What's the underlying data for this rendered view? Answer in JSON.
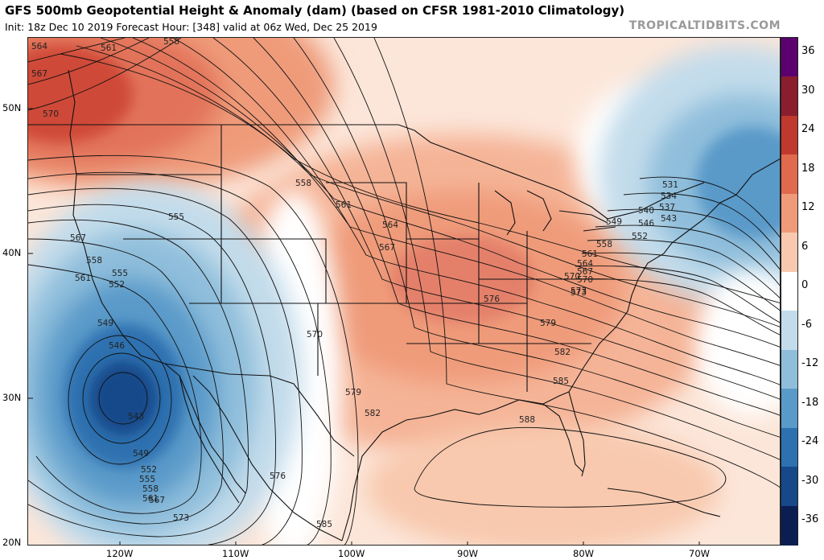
{
  "header": {
    "title": "GFS 500mb Geopotential Height & Anomaly (dam) (based on CFSR 1981-2010 Climatology)",
    "subtitle": "Init: 18z Dec 10 2019   Forecast Hour: [348]   valid at 06z Wed, Dec 25 2019",
    "brand": "TROPICALTIDBITS.COM"
  },
  "axes": {
    "lat_labels": [
      "50N",
      "40N",
      "30N",
      "20N"
    ],
    "lon_labels": [
      "120W",
      "110W",
      "100W",
      "90W",
      "80W",
      "70W"
    ]
  },
  "colorbar": {
    "labels": [
      "36",
      "30",
      "24",
      "18",
      "12",
      "6",
      "0",
      "-6",
      "-12",
      "-18",
      "-24",
      "-30",
      "-36"
    ],
    "colors": {
      "p36": "#5c0070",
      "p30": "#8a1e2e",
      "p24": "#c0392e",
      "p18": "#df6a4e",
      "p12": "#ef9b7a",
      "p6": "#f8c9ae",
      "zero": "#ffffff",
      "m6": "#c3dceb",
      "m12": "#8fbedb",
      "m18": "#5a9ac9",
      "m24": "#2d71b0",
      "m30": "#16488a",
      "m36": "#0b1e52"
    }
  },
  "contour_labels": [
    "564",
    "567",
    "570",
    "561",
    "558",
    "555",
    "552",
    "549",
    "546",
    "543",
    "567",
    "558",
    "561",
    "555",
    "552",
    "549",
    "546",
    "543",
    "549",
    "552",
    "555",
    "558",
    "561",
    "567",
    "573",
    "576",
    "570",
    "579",
    "582",
    "585",
    "558",
    "561",
    "564",
    "567",
    "570",
    "573",
    "576",
    "579",
    "582",
    "585",
    "588",
    "531",
    "534",
    "537",
    "540",
    "543",
    "546",
    "549",
    "552",
    "558",
    "561",
    "564",
    "567",
    "570",
    "573"
  ],
  "anomaly_features": [
    {
      "type": "ridge",
      "anomaly_max": 12
    },
    {
      "type": "trough",
      "anomaly_min": -30
    },
    {
      "type": "trough",
      "anomaly_min": -18
    }
  ]
}
